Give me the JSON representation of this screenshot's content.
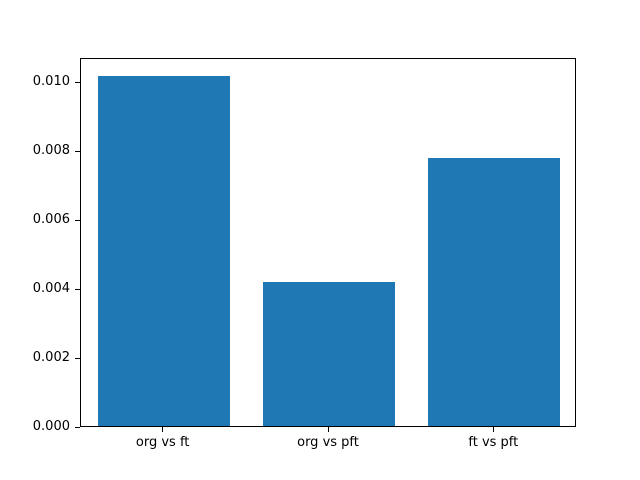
{
  "chart_data": {
    "type": "bar",
    "categories": [
      "org vs ft",
      "org vs pft",
      "ft vs pft"
    ],
    "values": [
      0.0102,
      0.0042,
      0.0078
    ],
    "title": "",
    "xlabel": "",
    "ylabel": "",
    "ylim": [
      0,
      0.0107
    ],
    "yticks": [
      0.0,
      0.002,
      0.004,
      0.006,
      0.008,
      0.01
    ],
    "tick_format_decimals": 3,
    "bar_color": "#1f77b4",
    "bar_width_fraction": 0.8,
    "background_color": "#ffffff",
    "axis_color": "#000000",
    "grid": false,
    "legend": null
  }
}
